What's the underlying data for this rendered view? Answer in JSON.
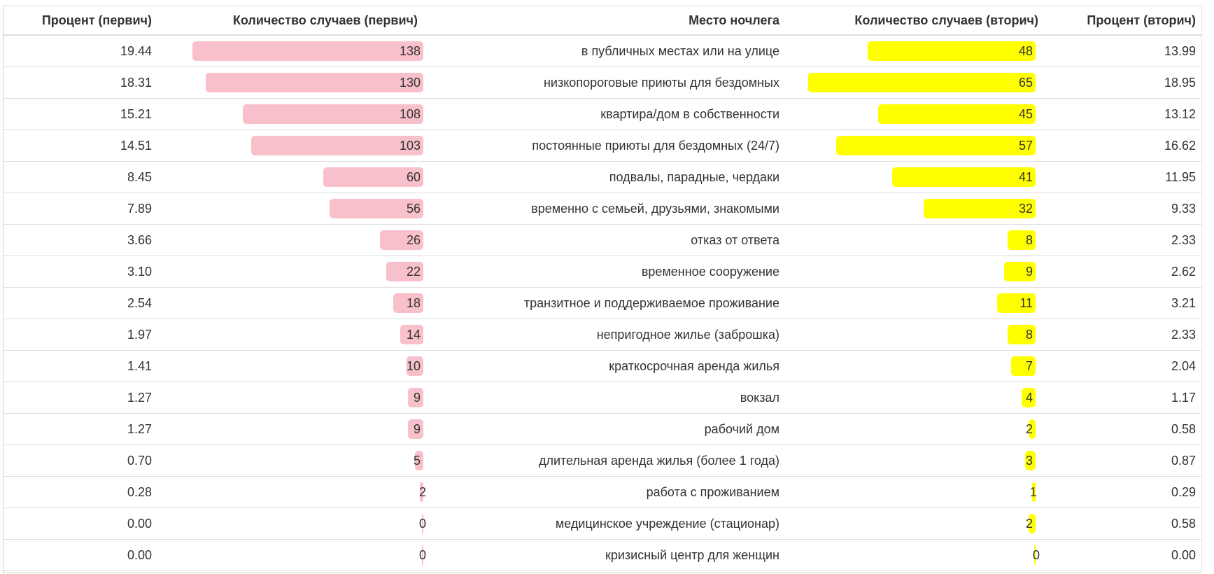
{
  "table": {
    "headers": [
      "Процент (первич)",
      "Количество случаев (первич)",
      "Место ночлега",
      "Количество случаев (вторич)",
      "Процент (вторич)"
    ]
  },
  "bar_colors": {
    "primary": "#f8c0cb",
    "secondary": "#ffff00"
  },
  "chart_data": {
    "type": "table",
    "columns": [
      "Процент (первич)",
      "Количество случаев (первич)",
      "Место ночлега",
      "Количество случаев (вторич)",
      "Процент (вторич)"
    ],
    "rows": [
      {
        "pct1": "19.44",
        "n1": 138,
        "place": "в публичных местах или на улице",
        "n2": 48,
        "pct2": "13.99"
      },
      {
        "pct1": "18.31",
        "n1": 130,
        "place": "низкопороговые приюты для бездомных",
        "n2": 65,
        "pct2": "18.95"
      },
      {
        "pct1": "15.21",
        "n1": 108,
        "place": "квартира/дом в собственности",
        "n2": 45,
        "pct2": "13.12"
      },
      {
        "pct1": "14.51",
        "n1": 103,
        "place": "постоянные приюты для бездомных (24/7)",
        "n2": 57,
        "pct2": "16.62"
      },
      {
        "pct1": "8.45",
        "n1": 60,
        "place": "подвалы, парадные, чердаки",
        "n2": 41,
        "pct2": "11.95"
      },
      {
        "pct1": "7.89",
        "n1": 56,
        "place": "временно с семьей, друзьями, знакомыми",
        "n2": 32,
        "pct2": "9.33"
      },
      {
        "pct1": "3.66",
        "n1": 26,
        "place": "отказ от ответа",
        "n2": 8,
        "pct2": "2.33"
      },
      {
        "pct1": "3.10",
        "n1": 22,
        "place": "временное сооружение",
        "n2": 9,
        "pct2": "2.62"
      },
      {
        "pct1": "2.54",
        "n1": 18,
        "place": "транзитное и поддерживаемое проживание",
        "n2": 11,
        "pct2": "3.21"
      },
      {
        "pct1": "1.97",
        "n1": 14,
        "place": "непригодное жилье (заброшка)",
        "n2": 8,
        "pct2": "2.33"
      },
      {
        "pct1": "1.41",
        "n1": 10,
        "place": "краткосрочная аренда жилья",
        "n2": 7,
        "pct2": "2.04"
      },
      {
        "pct1": "1.27",
        "n1": 9,
        "place": "вокзал",
        "n2": 4,
        "pct2": "1.17"
      },
      {
        "pct1": "1.27",
        "n1": 9,
        "place": "рабочий дом",
        "n2": 2,
        "pct2": "0.58"
      },
      {
        "pct1": "0.70",
        "n1": 5,
        "place": "длительная аренда жилья (более 1 года)",
        "n2": 3,
        "pct2": "0.87"
      },
      {
        "pct1": "0.28",
        "n1": 2,
        "place": "работа с проживанием",
        "n2": 1,
        "pct2": "0.29"
      },
      {
        "pct1": "0.00",
        "n1": 0,
        "place": "медицинское учреждение (стационар)",
        "n2": 2,
        "pct2": "0.58"
      },
      {
        "pct1": "0.00",
        "n1": 0,
        "place": "кризисный центр для женщин",
        "n2": 0,
        "pct2": "0.00"
      }
    ]
  }
}
